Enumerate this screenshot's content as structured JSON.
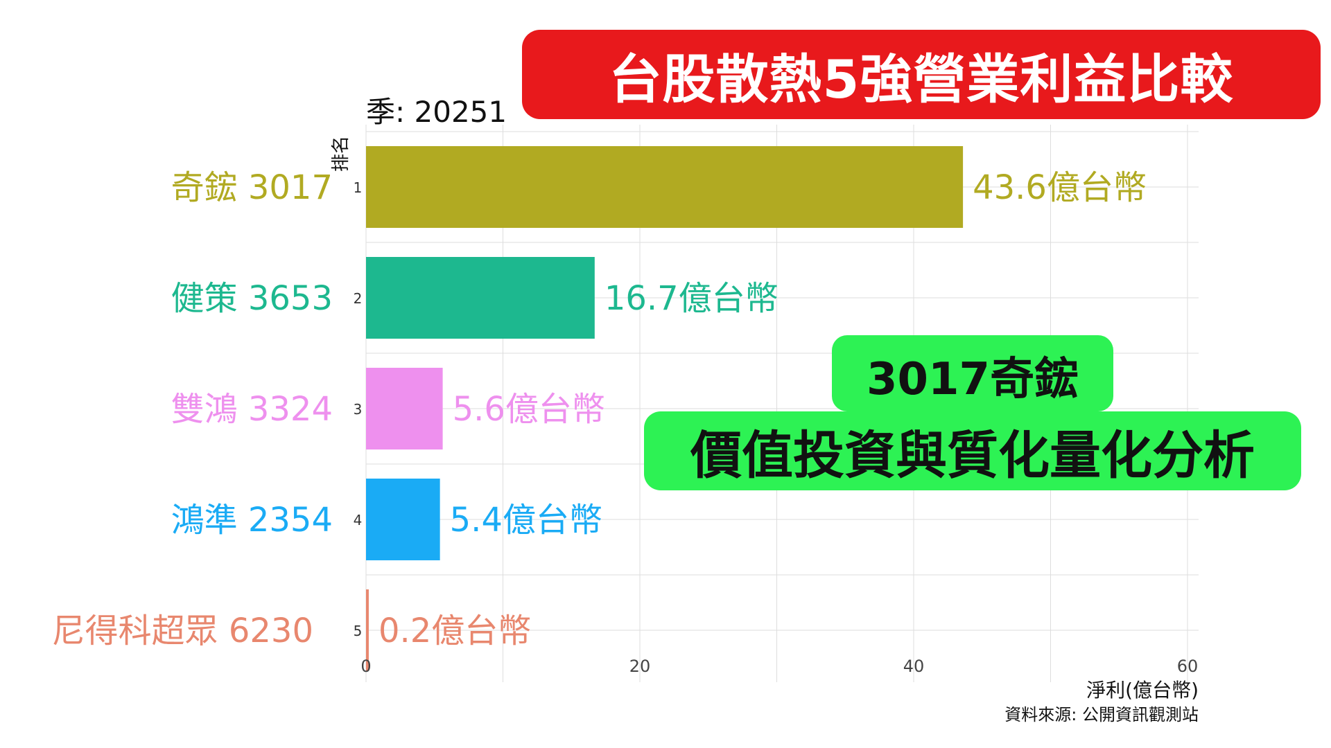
{
  "title": "台股散熱5強營業利益比較",
  "period_label": "季: 20251",
  "highlight": {
    "line1": "3017奇鋐",
    "line2": "價值投資與質化量化分析"
  },
  "source": "資料來源: 公開資訊觀測站",
  "chart_data": {
    "type": "bar",
    "orientation": "horizontal",
    "ylabel": "排名",
    "xlabel": "淨利(億台幣)",
    "xlim": [
      0,
      60
    ],
    "xticks": [
      0,
      20,
      40,
      60
    ],
    "grid": true,
    "value_suffix": "億台幣",
    "categories": [
      "奇鋐 3017",
      "健策 3653",
      "雙鴻 3324",
      "鴻準 2354",
      "尼得科超眾 6230"
    ],
    "ranks": [
      1,
      2,
      3,
      4,
      5
    ],
    "values": [
      43.6,
      16.7,
      5.6,
      5.4,
      0.2
    ],
    "value_labels": [
      "43.6億台幣",
      "16.7億台幣",
      "5.6億台幣",
      "5.4億台幣",
      "0.2億台幣"
    ],
    "colors": [
      "#b1aa22",
      "#1db88f",
      "#ee90ee",
      "#1aabf5",
      "#e8876e"
    ]
  }
}
